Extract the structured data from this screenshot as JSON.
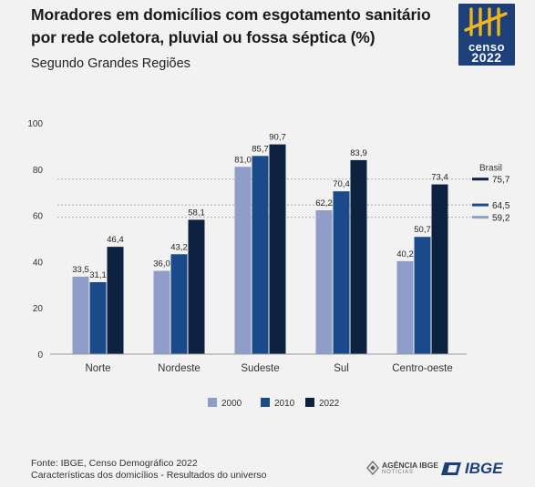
{
  "header": {
    "title_line1": "Moradores em domicílios com esgotamento sanitário",
    "title_line2": "por rede coletora, pluvial ou fossa séptica (%)",
    "subtitle": "Segundo Grandes Regiões"
  },
  "logo": {
    "line1": "censo",
    "line2": "2022"
  },
  "footer": {
    "source_line1": "Fonte: IBGE, Censo Demográfico 2022",
    "source_line2": "Características dos domicílios - Resultados do universo",
    "agencia_line1": "AGÊNCIA IBGE",
    "agencia_line2": "NOTÍCIAS",
    "ibge": "IBGE"
  },
  "colors": {
    "s2000": "#8e9ec8",
    "s2010": "#1a4a8a",
    "s2022": "#0d2240"
  },
  "chart_data": {
    "type": "bar",
    "categories": [
      "Norte",
      "Nordeste",
      "Sudeste",
      "Sul",
      "Centro-oeste"
    ],
    "series": [
      {
        "name": "2000",
        "values": [
          33.5,
          36.0,
          81.0,
          62.2,
          40.2
        ]
      },
      {
        "name": "2010",
        "values": [
          31.1,
          43.2,
          85.7,
          70.4,
          50.7
        ]
      },
      {
        "name": "2022",
        "values": [
          46.4,
          58.1,
          90.7,
          83.9,
          73.4
        ]
      }
    ],
    "value_labels": [
      [
        "33,5",
        "36,0",
        "81,0",
        "62,2",
        "40,2"
      ],
      [
        "31,1",
        "43,2",
        "85,7",
        "70,4",
        "50,7"
      ],
      [
        "46,4",
        "58,1",
        "90,7",
        "83,9",
        "73,4"
      ]
    ],
    "ylim": [
      0,
      100
    ],
    "yticks": [
      "0",
      "20",
      "40",
      "60",
      "80",
      "100"
    ],
    "grid": false,
    "legend_position": "bottom",
    "reference": {
      "label": "Brasil",
      "lines": [
        {
          "series": "2022",
          "value": 75.7,
          "label": "75,7"
        },
        {
          "series": "2010",
          "value": 64.5,
          "label": "64,5"
        },
        {
          "series": "2000",
          "value": 59.2,
          "label": "59,2"
        }
      ]
    }
  }
}
